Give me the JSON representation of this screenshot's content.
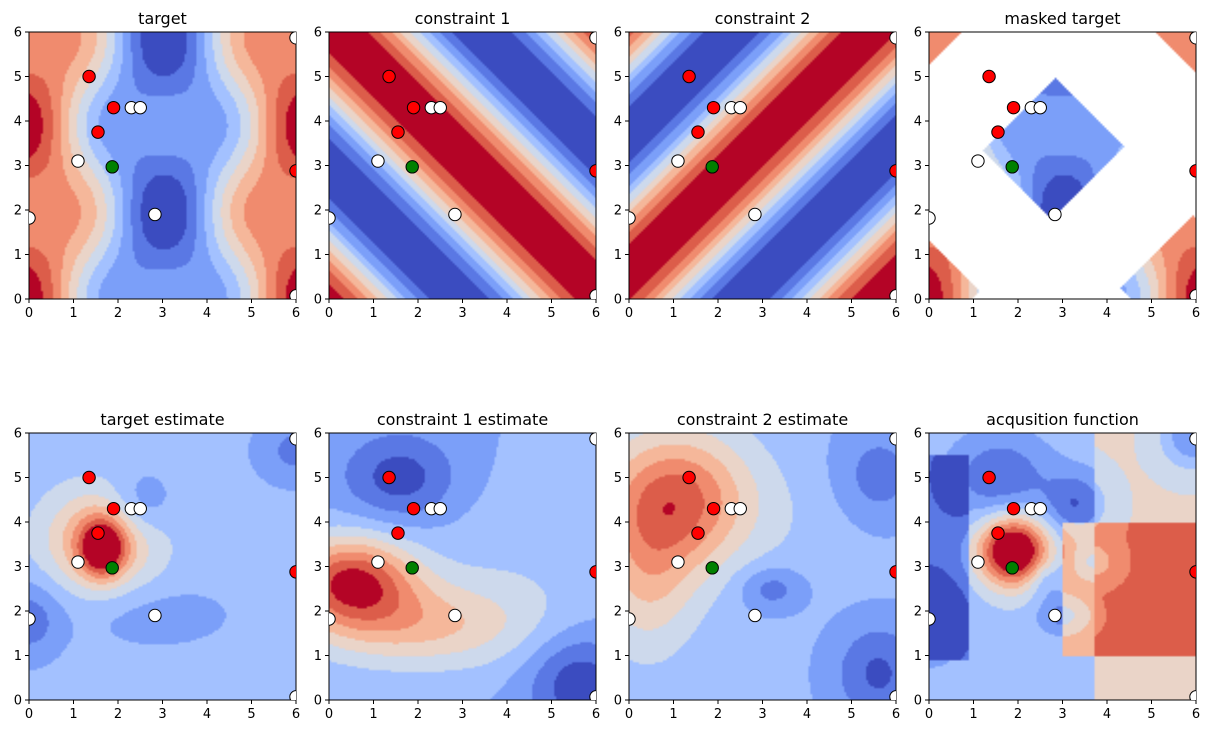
{
  "chart_data": [
    {
      "type": "heatmap",
      "title": "target",
      "xlim": [
        0,
        6
      ],
      "ylim": [
        0,
        6
      ],
      "xticks": [
        "0",
        "1",
        "2",
        "3",
        "4",
        "5",
        "6"
      ],
      "yticks": [
        "0",
        "1",
        "2",
        "3",
        "4",
        "5",
        "6"
      ],
      "kind": "target"
    },
    {
      "type": "heatmap",
      "title": "constraint 1",
      "xlim": [
        0,
        6
      ],
      "ylim": [
        0,
        6
      ],
      "xticks": [
        "0",
        "1",
        "2",
        "3",
        "4",
        "5",
        "6"
      ],
      "yticks": [
        "0",
        "1",
        "2",
        "3",
        "4",
        "5",
        "6"
      ],
      "kind": "c1"
    },
    {
      "type": "heatmap",
      "title": "constraint 2",
      "xlim": [
        0,
        6
      ],
      "ylim": [
        0,
        6
      ],
      "xticks": [
        "0",
        "1",
        "2",
        "3",
        "4",
        "5",
        "6"
      ],
      "yticks": [
        "0",
        "1",
        "2",
        "3",
        "4",
        "5",
        "6"
      ],
      "kind": "c2"
    },
    {
      "type": "heatmap",
      "title": "masked target",
      "xlim": [
        0,
        6
      ],
      "ylim": [
        0,
        6
      ],
      "xticks": [
        "0",
        "1",
        "2",
        "3",
        "4",
        "5",
        "6"
      ],
      "yticks": [
        "0",
        "1",
        "2",
        "3",
        "4",
        "5",
        "6"
      ],
      "kind": "masked"
    },
    {
      "type": "heatmap",
      "title": "target estimate",
      "xlim": [
        0,
        6
      ],
      "ylim": [
        0,
        6
      ],
      "xticks": [
        "0",
        "1",
        "2",
        "3",
        "4",
        "5",
        "6"
      ],
      "yticks": [
        "0",
        "1",
        "2",
        "3",
        "4",
        "5",
        "6"
      ],
      "kind": "test"
    },
    {
      "type": "heatmap",
      "title": "constraint 1 estimate",
      "xlim": [
        0,
        6
      ],
      "ylim": [
        0,
        6
      ],
      "xticks": [
        "0",
        "1",
        "2",
        "3",
        "4",
        "5",
        "6"
      ],
      "yticks": [
        "0",
        "1",
        "2",
        "3",
        "4",
        "5",
        "6"
      ],
      "kind": "c1est"
    },
    {
      "type": "heatmap",
      "title": "constraint 2 estimate",
      "xlim": [
        0,
        6
      ],
      "ylim": [
        0,
        6
      ],
      "xticks": [
        "0",
        "1",
        "2",
        "3",
        "4",
        "5",
        "6"
      ],
      "yticks": [
        "0",
        "1",
        "2",
        "3",
        "4",
        "5",
        "6"
      ],
      "kind": "c2est"
    },
    {
      "type": "heatmap",
      "title": "acqusition function",
      "xlim": [
        0,
        6
      ],
      "ylim": [
        0,
        6
      ],
      "xticks": [
        "0",
        "1",
        "2",
        "3",
        "4",
        "5",
        "6"
      ],
      "yticks": [
        "0",
        "1",
        "2",
        "3",
        "4",
        "5",
        "6"
      ],
      "kind": "acq"
    }
  ],
  "points": [
    {
      "x": 1.35,
      "y": 5.0,
      "color": "#ff0000"
    },
    {
      "x": 1.9,
      "y": 4.3,
      "color": "#ff0000"
    },
    {
      "x": 2.3,
      "y": 4.3,
      "color": "#ffffff"
    },
    {
      "x": 2.5,
      "y": 4.3,
      "color": "#ffffff"
    },
    {
      "x": 1.55,
      "y": 3.75,
      "color": "#ff0000"
    },
    {
      "x": 1.1,
      "y": 3.1,
      "color": "#ffffff"
    },
    {
      "x": 1.87,
      "y": 2.97,
      "color": "#008000"
    },
    {
      "x": 2.83,
      "y": 1.9,
      "color": "#ffffff"
    },
    {
      "x": 0.0,
      "y": 1.82,
      "color": "#ffffff"
    },
    {
      "x": 6.0,
      "y": 5.87,
      "color": "#ffffff"
    },
    {
      "x": 6.0,
      "y": 2.88,
      "color": "#ff0000"
    },
    {
      "x": 6.0,
      "y": 0.07,
      "color": "#ffffff"
    }
  ],
  "colormap": [
    "#3b4cc0",
    "#5a78e4",
    "#7b9ff9",
    "#a3c1ff",
    "#cdd9ec",
    "#ead4c8",
    "#f5b79a",
    "#f08b6e",
    "#dc5d4a",
    "#b40426"
  ]
}
